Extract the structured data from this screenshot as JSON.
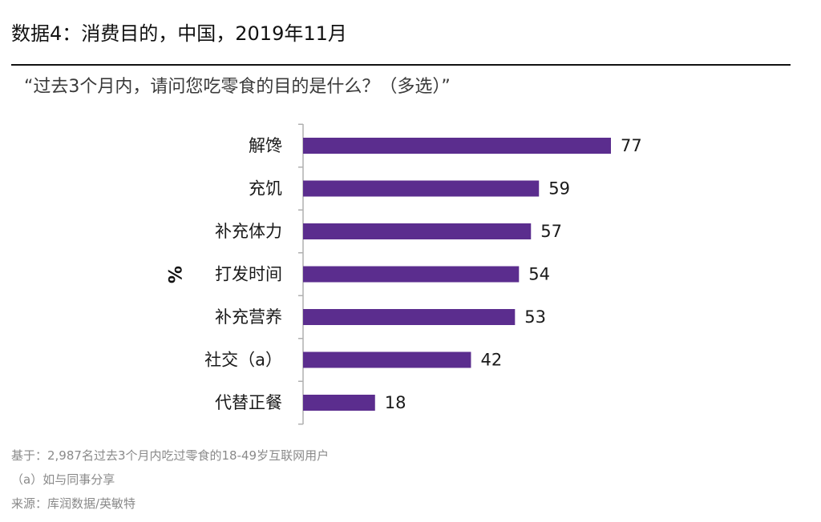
{
  "header": {
    "title": "数据4：消费目的，中国，2019年11月",
    "subtitle": "“过去3个月内，请问您吃零食的目的是什么？（多选）”"
  },
  "footer": {
    "base_note": "基于：2,987名过去3个月内吃过零食的18-49岁互联网用户",
    "footnote_a": "（a）如与同事分享",
    "source": "来源：库润数据/英敏特"
  },
  "chart_data": {
    "type": "bar",
    "orientation": "horizontal",
    "title": "数据4：消费目的，中国，2019年11月",
    "subtitle": "“过去3个月内，请问您吃零食的目的是什么？（多选）”",
    "ylabel": "%",
    "categories": [
      "解馋",
      "充饥",
      "补充体力",
      "打发时间",
      "补充营养",
      "社交（a）",
      "代替正餐"
    ],
    "values": [
      77,
      59,
      57,
      54,
      53,
      42,
      18
    ],
    "xlim": [
      0,
      100
    ],
    "grid": false,
    "legend": "none",
    "bar_color": "#5b2d8e",
    "axis_color": "#b0b0b0"
  }
}
